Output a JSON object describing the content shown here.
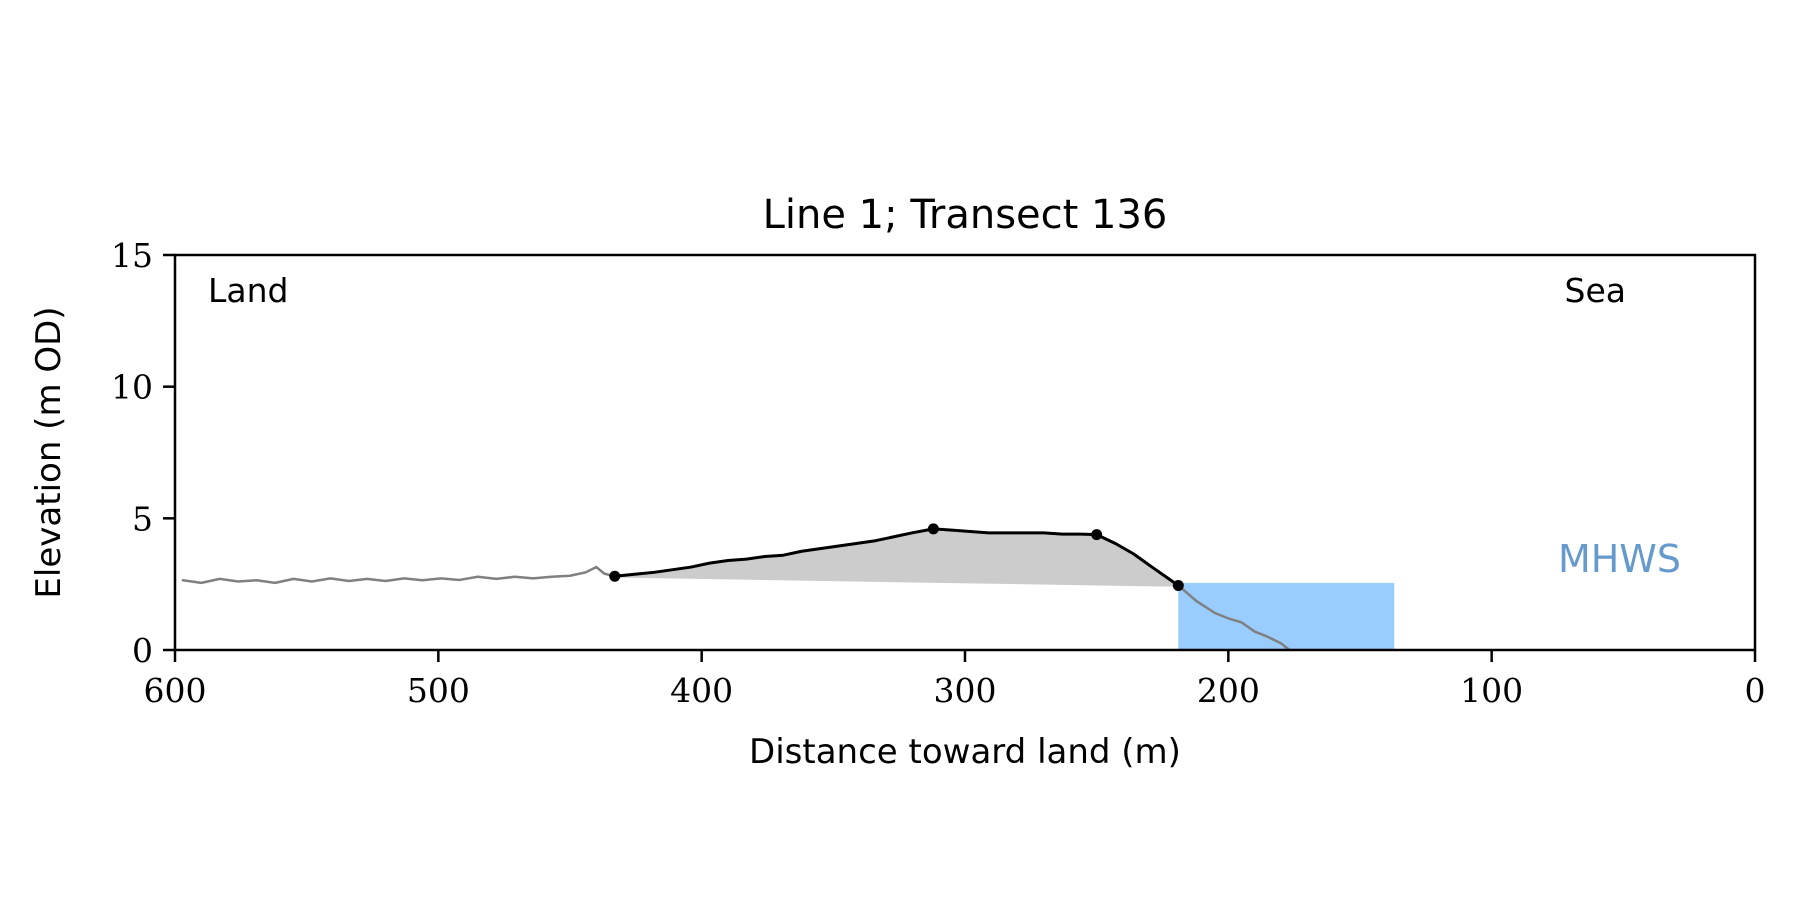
{
  "chart_data": {
    "type": "line",
    "title": "Line 1; Transect 136",
    "xlabel": "Distance toward land (m)",
    "ylabel": "Elevation (m OD)",
    "xlim": [
      600,
      0
    ],
    "ylim": [
      0,
      15
    ],
    "x_ticks": [
      600,
      500,
      400,
      300,
      200,
      100,
      0
    ],
    "y_ticks": [
      0,
      5,
      10,
      15
    ],
    "grid": false,
    "legend": "none",
    "annotations": {
      "land": "Land",
      "sea": "Sea",
      "mhws": "MHWS"
    },
    "mhws": {
      "elevation": 2.55,
      "x_start": 219,
      "x_end": 137
    },
    "series": [
      {
        "role": "profile-outer",
        "color": "#808080",
        "x": [
          597,
          590,
          583,
          576,
          569,
          562,
          555,
          548,
          541,
          534,
          527,
          520,
          513,
          506,
          499,
          492,
          485,
          478,
          471,
          464,
          457,
          450,
          444,
          440,
          437,
          433
        ],
        "y": [
          2.65,
          2.55,
          2.7,
          2.6,
          2.65,
          2.55,
          2.7,
          2.6,
          2.72,
          2.62,
          2.7,
          2.62,
          2.72,
          2.65,
          2.72,
          2.66,
          2.78,
          2.7,
          2.78,
          2.72,
          2.78,
          2.82,
          2.95,
          3.15,
          2.9,
          2.8
        ]
      },
      {
        "role": "profile-outer",
        "color": "#808080",
        "x": [
          219,
          212,
          205,
          200,
          195,
          190,
          185,
          180,
          177
        ],
        "y": [
          2.45,
          1.85,
          1.4,
          1.2,
          1.05,
          0.7,
          0.5,
          0.25,
          0.02
        ]
      },
      {
        "role": "dune-profile",
        "color": "#000000",
        "x": [
          433,
          425,
          418,
          411,
          404,
          397,
          390,
          383,
          376,
          369,
          362,
          355,
          348,
          341,
          334,
          327,
          320,
          312,
          305,
          298,
          291,
          284,
          277,
          270,
          263,
          256,
          250,
          243,
          236,
          229,
          224,
          219
        ],
        "y": [
          2.8,
          2.88,
          2.95,
          3.05,
          3.15,
          3.3,
          3.4,
          3.45,
          3.55,
          3.6,
          3.75,
          3.85,
          3.95,
          4.05,
          4.15,
          4.3,
          4.45,
          4.6,
          4.55,
          4.5,
          4.45,
          4.45,
          4.45,
          4.45,
          4.4,
          4.4,
          4.38,
          4.05,
          3.65,
          3.15,
          2.8,
          2.45
        ]
      }
    ],
    "fill_base": {
      "x": [
        433,
        219
      ],
      "y": [
        2.75,
        2.4
      ]
    },
    "key_points": {
      "x": [
        433,
        312,
        250,
        219
      ],
      "y": [
        2.8,
        4.6,
        4.38,
        2.45
      ]
    },
    "colors": {
      "dune_fill": "#cccccc",
      "water": "#99ccff",
      "mhws_text": "#6699cc",
      "profile_outer": "#808080",
      "profile_main": "#000000"
    }
  }
}
